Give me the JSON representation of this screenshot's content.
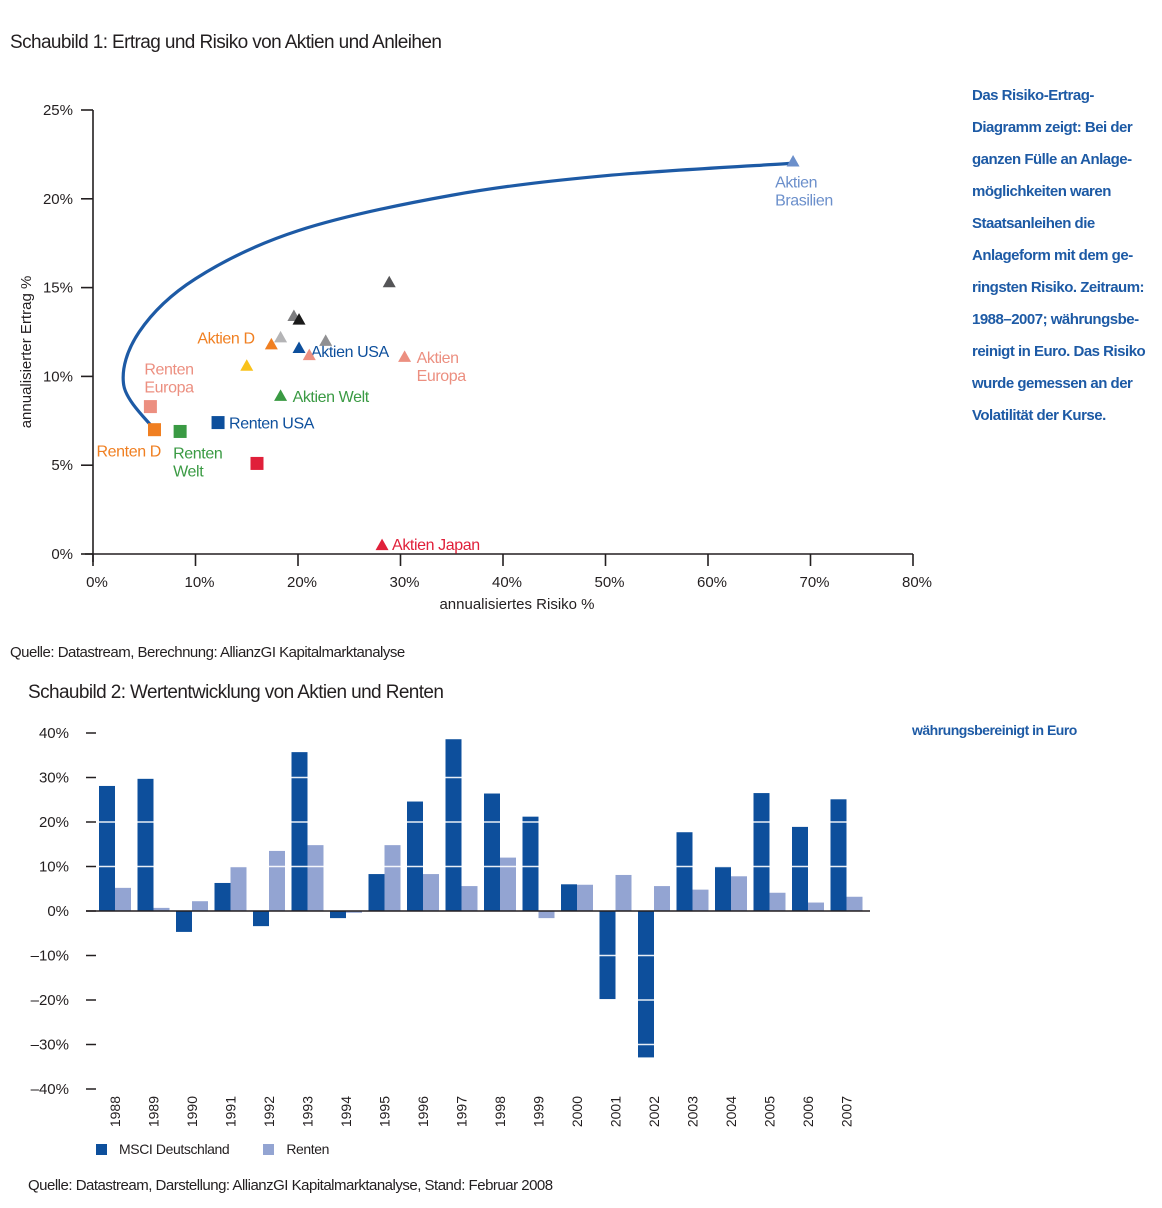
{
  "chart_data": [
    {
      "type": "scatter",
      "title": "Schaubild 1: Ertrag und Risiko von Aktien und Anleihen",
      "xlabel": "annualisiertes Risiko %",
      "ylabel": "annualisierter Ertrag %",
      "xlim": [
        0,
        80
      ],
      "ylim": [
        0,
        25
      ],
      "x_ticks": [
        "0%",
        "10%",
        "20%",
        "30%",
        "40%",
        "50%",
        "60%",
        "70%",
        "80%"
      ],
      "y_ticks": [
        "0%",
        "5%",
        "10%",
        "15%",
        "20%",
        "25%"
      ],
      "grid": false,
      "frontier_curve": {
        "color": "#1d5aa5",
        "points": [
          [
            6.0,
            7.0
          ],
          [
            3.0,
            9.5
          ],
          [
            4.5,
            12.5
          ],
          [
            10,
            15.5
          ],
          [
            20,
            18.2
          ],
          [
            35,
            20.2
          ],
          [
            50,
            21.3
          ],
          [
            68.3,
            22.0
          ]
        ]
      },
      "points": [
        {
          "name": "Aktien Brasilien",
          "label": "Aktien\nBrasilien",
          "marker": "triangle",
          "color": "#6b8fcb",
          "x": 68.3,
          "y": 22.1
        },
        {
          "name": "Renten D",
          "label": "Renten D",
          "marker": "square",
          "color": "#f07f21",
          "x": 6.0,
          "y": 7.0
        },
        {
          "name": "Renten Europa",
          "label": "Renten\nEuropa",
          "marker": "square",
          "color": "#ec8f80",
          "x": 5.6,
          "y": 8.3
        },
        {
          "name": "Renten Welt",
          "label": "Renten\nWelt",
          "marker": "square",
          "color": "#3a9a43",
          "x": 8.5,
          "y": 6.9
        },
        {
          "name": "Renten USA",
          "label": "Renten USA",
          "marker": "square",
          "color": "#0d4f9c",
          "x": 12.2,
          "y": 7.4
        },
        {
          "name": "",
          "label": "",
          "marker": "square",
          "color": "#e0203a",
          "x": 16.0,
          "y": 5.1
        },
        {
          "name": "Aktien Japan",
          "label": "Aktien Japan",
          "marker": "triangle",
          "color": "#e0203a",
          "x": 28.2,
          "y": 0.5
        },
        {
          "name": "Aktien Welt",
          "label": "Aktien Welt",
          "marker": "triangle",
          "color": "#3a9a43",
          "x": 18.3,
          "y": 8.9
        },
        {
          "name": "",
          "label": "",
          "marker": "triangle",
          "color": "#f9c21b",
          "x": 15.0,
          "y": 10.6
        },
        {
          "name": "Aktien D",
          "label": "Aktien D",
          "marker": "triangle",
          "color": "#f07f21",
          "x": 17.4,
          "y": 11.8
        },
        {
          "name": "",
          "label": "",
          "marker": "triangle",
          "color": "#b4b4b6",
          "x": 18.3,
          "y": 12.2
        },
        {
          "name": "",
          "label": "",
          "marker": "triangle",
          "color": "#7d7d7f",
          "x": 19.6,
          "y": 13.4
        },
        {
          "name": "",
          "label": "",
          "marker": "triangle",
          "color": "#1a1a1a",
          "x": 20.1,
          "y": 13.2
        },
        {
          "name": "Aktien USA",
          "label": "Aktien USA",
          "marker": "triangle",
          "color": "#0d4f9c",
          "x": 20.1,
          "y": 11.6
        },
        {
          "name": "",
          "label": "",
          "marker": "triangle",
          "color": "#ec8f80",
          "x": 21.1,
          "y": 11.2
        },
        {
          "name": "",
          "label": "",
          "marker": "triangle",
          "color": "#909092",
          "x": 22.7,
          "y": 12.0
        },
        {
          "name": "",
          "label": "",
          "marker": "triangle",
          "color": "#555557",
          "x": 28.9,
          "y": 15.3
        },
        {
          "name": "Aktien Europa",
          "label": "Aktien\nEuropa",
          "marker": "triangle",
          "color": "#ec8f80",
          "x": 30.4,
          "y": 11.1
        }
      ]
    },
    {
      "type": "bar",
      "title": "Schaubild 2: Wertentwicklung von Aktien und Renten",
      "xlabel": "",
      "ylabel": "",
      "ylim": [
        -40,
        40
      ],
      "y_ticks": [
        "40%",
        "30%",
        "20%",
        "10%",
        "0%",
        "-10%",
        "-20%",
        "-30%",
        "-40%"
      ],
      "grid": true,
      "legend": "bottom-left",
      "categories": [
        "1988",
        "1989",
        "1990",
        "1991",
        "1992",
        "1993",
        "1994",
        "1995",
        "1996",
        "1997",
        "1998",
        "1999",
        "2000",
        "2001",
        "2002",
        "2003",
        "2004",
        "2005",
        "2006",
        "2007"
      ],
      "series": [
        {
          "name": "MSCI Deutschland",
          "color": "#0d4f9c",
          "values": [
            28.1,
            29.7,
            -4.7,
            6.3,
            -3.4,
            35.7,
            -1.6,
            8.3,
            24.6,
            38.6,
            26.4,
            21.2,
            6.0,
            -19.8,
            -32.9,
            17.7,
            10.0,
            26.5,
            18.9,
            25.1
          ]
        },
        {
          "name": "Renten",
          "color": "#93a4d2",
          "values": [
            5.2,
            0.7,
            2.2,
            9.9,
            13.5,
            14.8,
            -0.4,
            14.8,
            8.3,
            5.6,
            12.0,
            -1.6,
            5.9,
            8.1,
            5.6,
            4.8,
            7.8,
            4.1,
            1.9,
            3.2
          ]
        }
      ]
    }
  ],
  "texts": {
    "chart1_title": "Schaubild 1: Ertrag und Risiko von Aktien und Anleihen",
    "chart1_source": "Quelle: Datastream, Berechnung: AllianzGI Kapitalmarktanalyse",
    "chart2_title": "Schaubild 2: Wertentwicklung von Aktien und Renten",
    "chart2_source": "Quelle: Datastream, Darstellung: AllianzGI Kapitalmarktanalyse, Stand: Februar 2008",
    "chart2_note": "währungsbereinigt in Euro",
    "sidenote_lines": [
      "Das Risiko-Ertrag-",
      "Diagramm zeigt: Bei der",
      "ganzen Fülle an Anlage-",
      "möglichkeiten waren",
      "Staatsanleihen  die",
      "Anlageform mit dem ge-",
      "ringsten Risiko. Zeitraum:",
      "1988–2007; währungsbe-",
      "reinigt in Euro. Das Risiko",
      "wurde gemessen an der",
      "Volatilität der Kurse."
    ],
    "legend_msci": "MSCI Deutschland",
    "legend_renten": "Renten"
  }
}
